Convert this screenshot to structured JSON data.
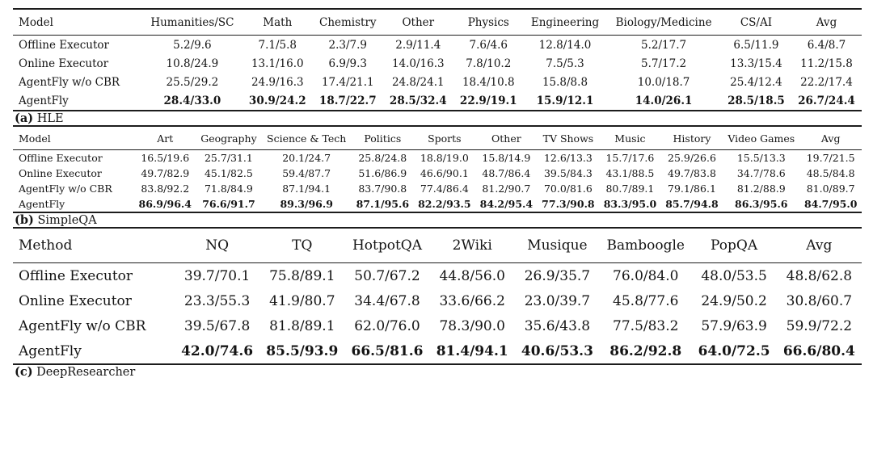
{
  "page": {
    "background_color": "#ffffff",
    "text_color": "#141414",
    "rule_color": "#1c1c1c"
  },
  "tables": [
    {
      "id": "hle",
      "caption_label": "(a)",
      "caption_text": "HLE",
      "columns": [
        "Model",
        "Humanities/SC",
        "Math",
        "Chemistry",
        "Other",
        "Physics",
        "Engineering",
        "Biology/Medicine",
        "CS/AI",
        "Avg"
      ],
      "rows": [
        {
          "label": "Offline Executor",
          "bold": false,
          "cells": [
            "5.2/9.6",
            "7.1/5.8",
            "2.3/7.9",
            "2.9/11.4",
            "7.6/4.6",
            "12.8/14.0",
            "5.2/17.7",
            "6.5/11.9",
            "6.4/8.7"
          ]
        },
        {
          "label": "Online Executor",
          "bold": false,
          "cells": [
            "10.8/24.9",
            "13.1/16.0",
            "6.9/9.3",
            "14.0/16.3",
            "7.8/10.2",
            "7.5/5.3",
            "5.7/17.2",
            "13.3/15.4",
            "11.2/15.8"
          ]
        },
        {
          "label": "AgentFly w/o CBR",
          "bold": false,
          "cells": [
            "25.5/29.2",
            "24.9/16.3",
            "17.4/21.1",
            "24.8/24.1",
            "18.4/10.8",
            "15.8/8.8",
            "10.0/18.7",
            "25.4/12.4",
            "22.2/17.4"
          ]
        },
        {
          "label": "AgentFly",
          "bold": true,
          "cells": [
            "28.4/33.0",
            "30.9/24.2",
            "18.7/22.7",
            "28.5/32.4",
            "22.9/19.1",
            "15.9/12.1",
            "14.0/26.1",
            "28.5/18.5",
            "26.7/24.4"
          ]
        }
      ]
    },
    {
      "id": "simpleqa",
      "caption_label": "(b)",
      "caption_text": "SimpleQA",
      "columns": [
        "Model",
        "Art",
        "Geography",
        "Science & Tech",
        "Politics",
        "Sports",
        "Other",
        "TV Shows",
        "Music",
        "History",
        "Video Games",
        "Avg"
      ],
      "rows": [
        {
          "label": "Offline Executor",
          "bold": false,
          "cells": [
            "16.5/19.6",
            "25.7/31.1",
            "20.1/24.7",
            "25.8/24.8",
            "18.8/19.0",
            "15.8/14.9",
            "12.6/13.3",
            "15.7/17.6",
            "25.9/26.6",
            "15.5/13.3",
            "19.7/21.5"
          ]
        },
        {
          "label": "Online Executor",
          "bold": false,
          "cells": [
            "49.7/82.9",
            "45.1/82.5",
            "59.4/87.7",
            "51.6/86.9",
            "46.6/90.1",
            "48.7/86.4",
            "39.5/84.3",
            "43.1/88.5",
            "49.7/83.8",
            "34.7/78.6",
            "48.5/84.8"
          ]
        },
        {
          "label": "AgentFly w/o CBR",
          "bold": false,
          "cells": [
            "83.8/92.2",
            "71.8/84.9",
            "87.1/94.1",
            "83.7/90.8",
            "77.4/86.4",
            "81.2/90.7",
            "70.0/81.6",
            "80.7/89.1",
            "79.1/86.1",
            "81.2/88.9",
            "81.0/89.7"
          ]
        },
        {
          "label": "AgentFly",
          "bold": true,
          "cells": [
            "86.9/96.4",
            "76.6/91.7",
            "89.3/96.9",
            "87.1/95.6",
            "82.2/93.5",
            "84.2/95.4",
            "77.3/90.8",
            "83.3/95.0",
            "85.7/94.8",
            "86.3/95.6",
            "84.7/95.0"
          ]
        }
      ]
    },
    {
      "id": "deepresearcher",
      "caption_label": "(c)",
      "caption_text": "DeepResearcher",
      "columns": [
        "Method",
        "NQ",
        "TQ",
        "HotpotQA",
        "2Wiki",
        "Musique",
        "Bamboogle",
        "PopQA",
        "Avg"
      ],
      "rows": [
        {
          "label": "Offline Executor",
          "bold": false,
          "cells": [
            "39.7/70.1",
            "75.8/89.1",
            "50.7/67.2",
            "44.8/56.0",
            "26.9/35.7",
            "76.0/84.0",
            "48.0/53.5",
            "48.8/62.8"
          ]
        },
        {
          "label": "Online Executor",
          "bold": false,
          "cells": [
            "23.3/55.3",
            "41.9/80.7",
            "34.4/67.8",
            "33.6/66.2",
            "23.0/39.7",
            "45.8/77.6",
            "24.9/50.2",
            "30.8/60.7"
          ]
        },
        {
          "label": "AgentFly w/o CBR",
          "bold": false,
          "cells": [
            "39.5/67.8",
            "81.8/89.1",
            "62.0/76.0",
            "78.3/90.0",
            "35.6/43.8",
            "77.5/83.2",
            "57.9/63.9",
            "59.9/72.2"
          ]
        },
        {
          "label": "AgentFly",
          "bold": true,
          "cells": [
            "42.0/74.6",
            "85.5/93.9",
            "66.5/81.6",
            "81.4/94.1",
            "40.6/53.3",
            "86.2/92.8",
            "64.0/72.5",
            "66.6/80.4"
          ]
        }
      ]
    }
  ]
}
